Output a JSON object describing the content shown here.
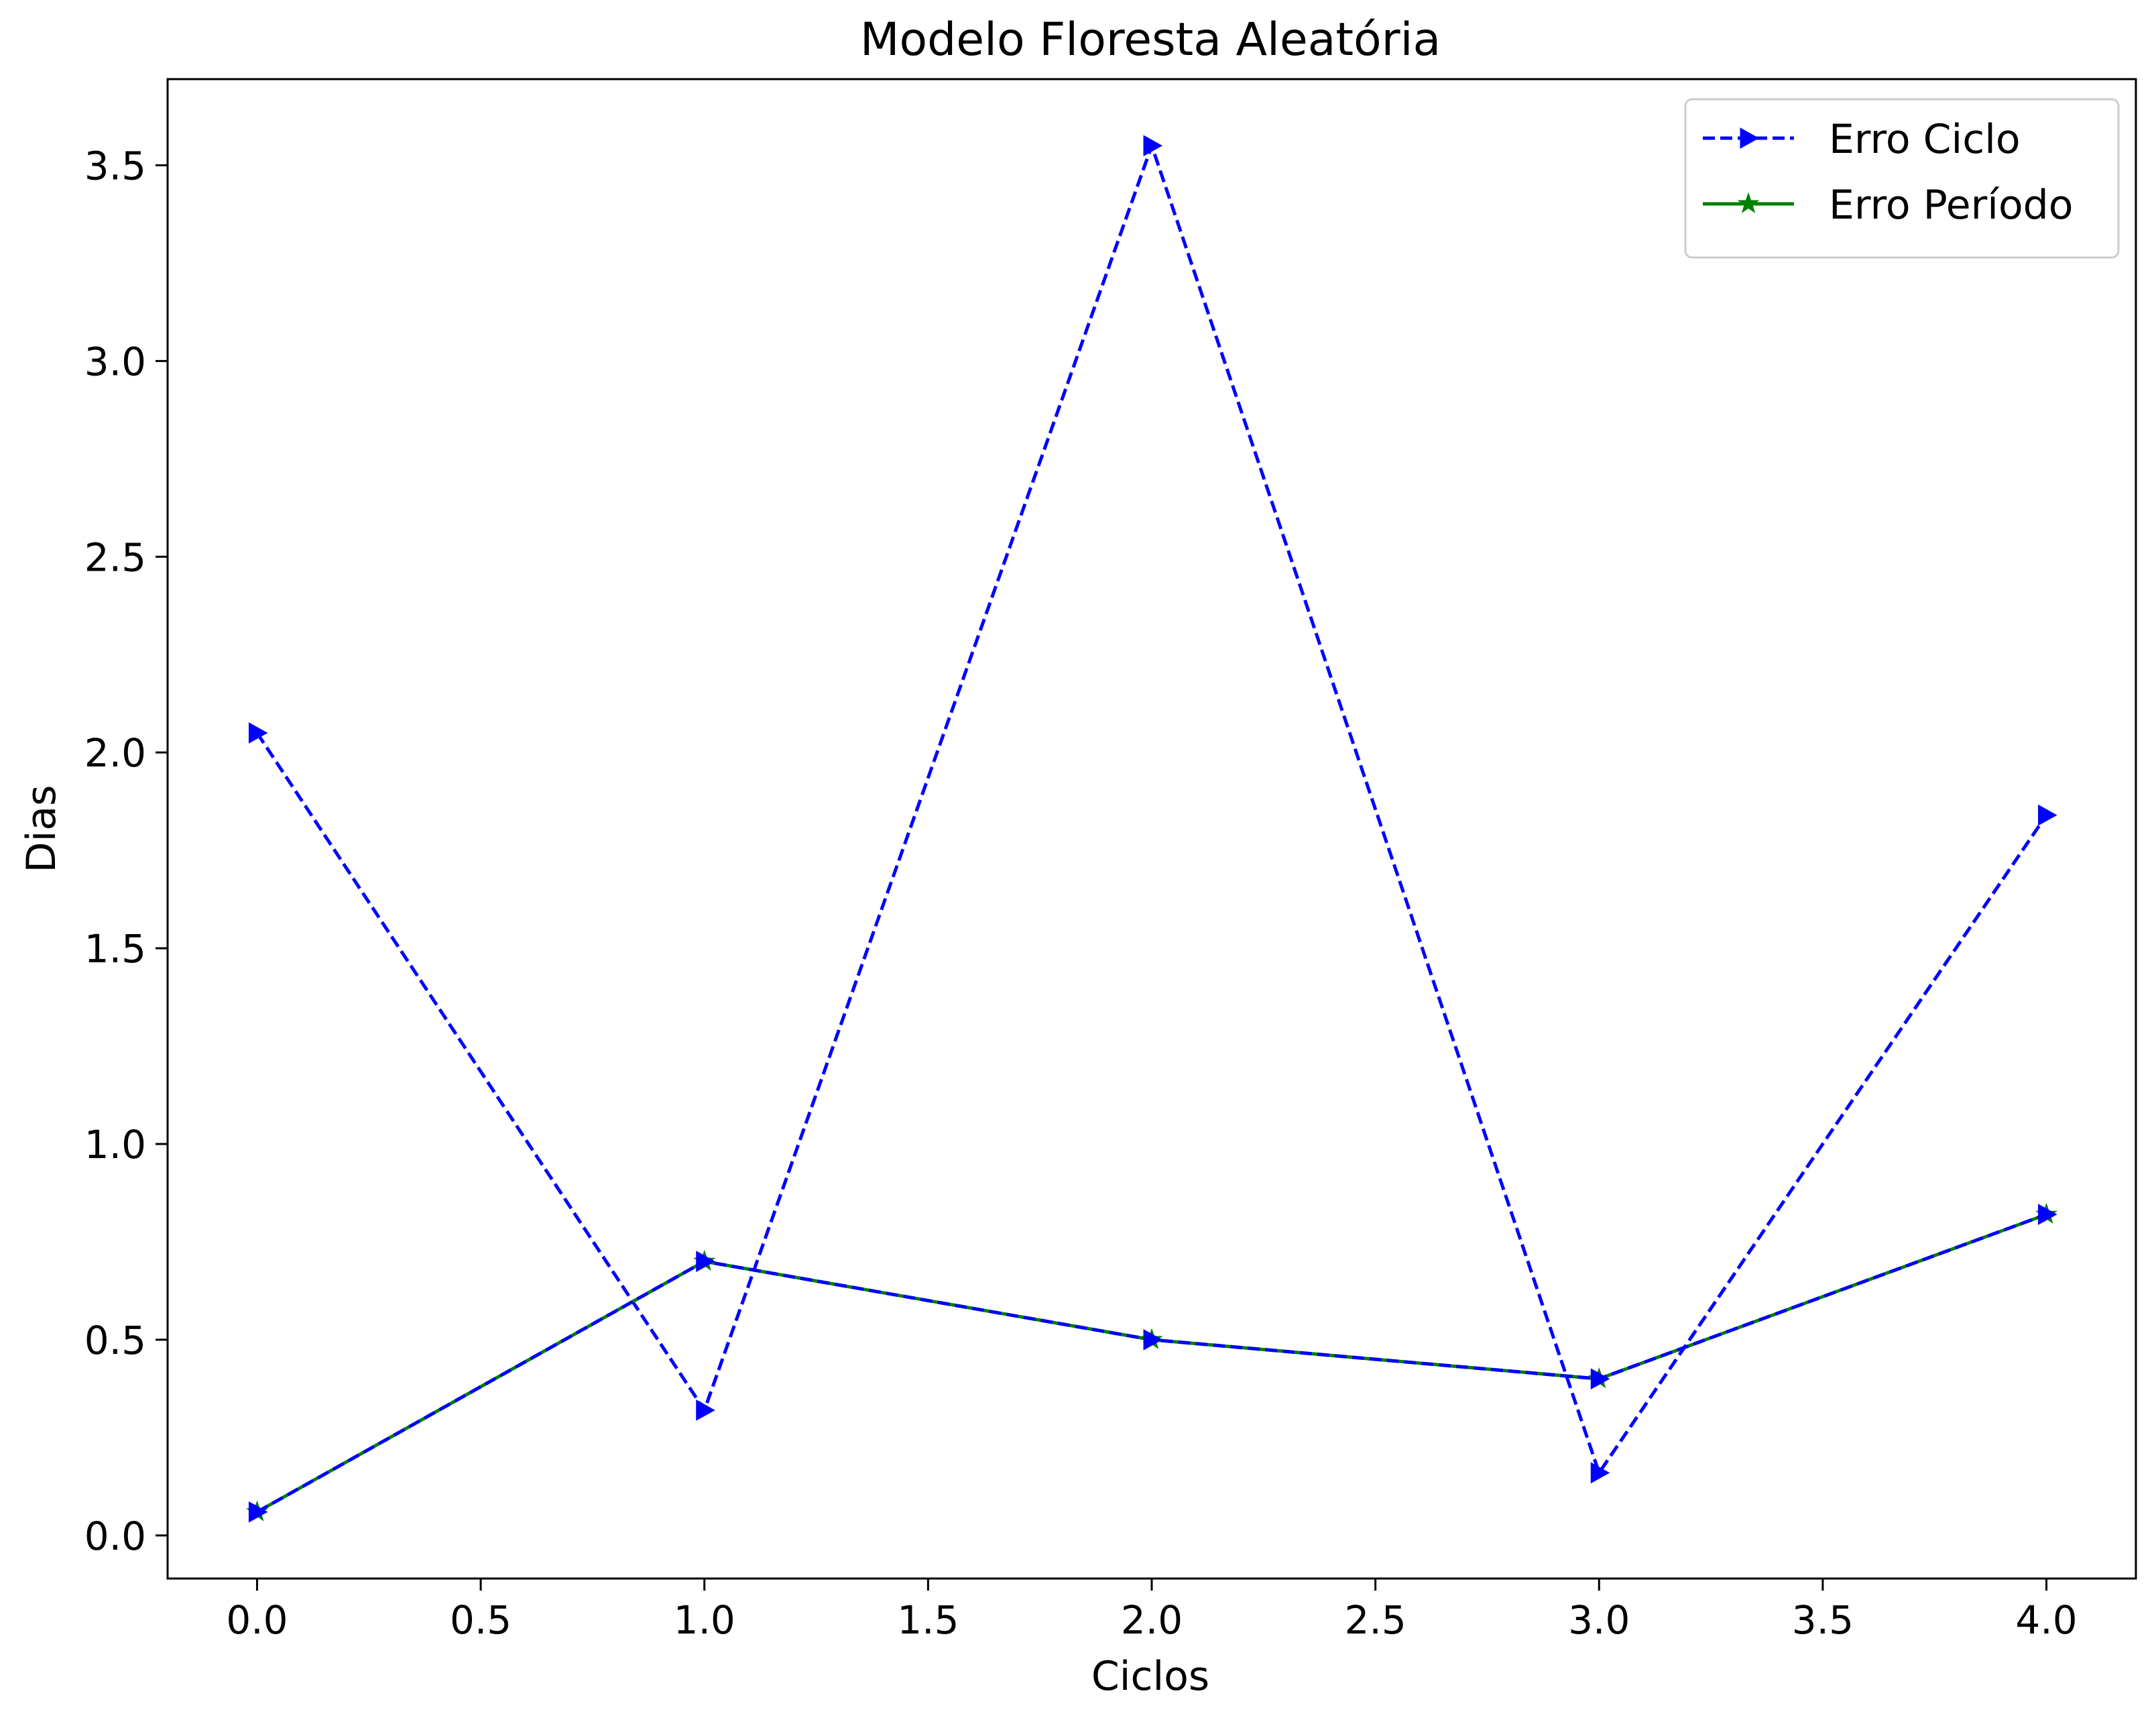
{
  "chart_data": {
    "type": "line",
    "title": "Modelo Floresta Aleatória",
    "xlabel": "Ciclos",
    "ylabel": "Dias",
    "xlim": [
      -0.2,
      4.2
    ],
    "ylim": [
      -0.11,
      3.72
    ],
    "xticks": [
      0.0,
      0.5,
      1.0,
      1.5,
      2.0,
      2.5,
      3.0,
      3.5,
      4.0
    ],
    "xtick_labels": [
      "0.0",
      "0.5",
      "1.0",
      "1.5",
      "2.0",
      "2.5",
      "3.0",
      "3.5",
      "4.0"
    ],
    "yticks": [
      0.0,
      0.5,
      1.0,
      1.5,
      2.0,
      2.5,
      3.0,
      3.5
    ],
    "ytick_labels": [
      "0.0",
      "0.5",
      "1.0",
      "1.5",
      "2.0",
      "2.5",
      "3.0",
      "3.5"
    ],
    "grid": false,
    "legend_position": "top-right",
    "x": [
      0,
      1,
      2,
      3,
      4
    ],
    "series": [
      {
        "name": "Erro Ciclo",
        "values": [
          2.05,
          0.32,
          3.55,
          0.16,
          1.84
        ],
        "color": "#0000ff",
        "line_style": "dashed",
        "marker": "triangle-right"
      },
      {
        "name": "Erro Período",
        "values": [
          0.06,
          0.7,
          0.5,
          0.4,
          0.82
        ],
        "color": "#008000",
        "line_style": "solid",
        "marker": "star"
      },
      {
        "name": "",
        "values": [
          0.06,
          0.7,
          0.5,
          0.4,
          0.82
        ],
        "color": "#0000ff",
        "line_style": "dashed",
        "marker": "triangle-right"
      }
    ]
  }
}
